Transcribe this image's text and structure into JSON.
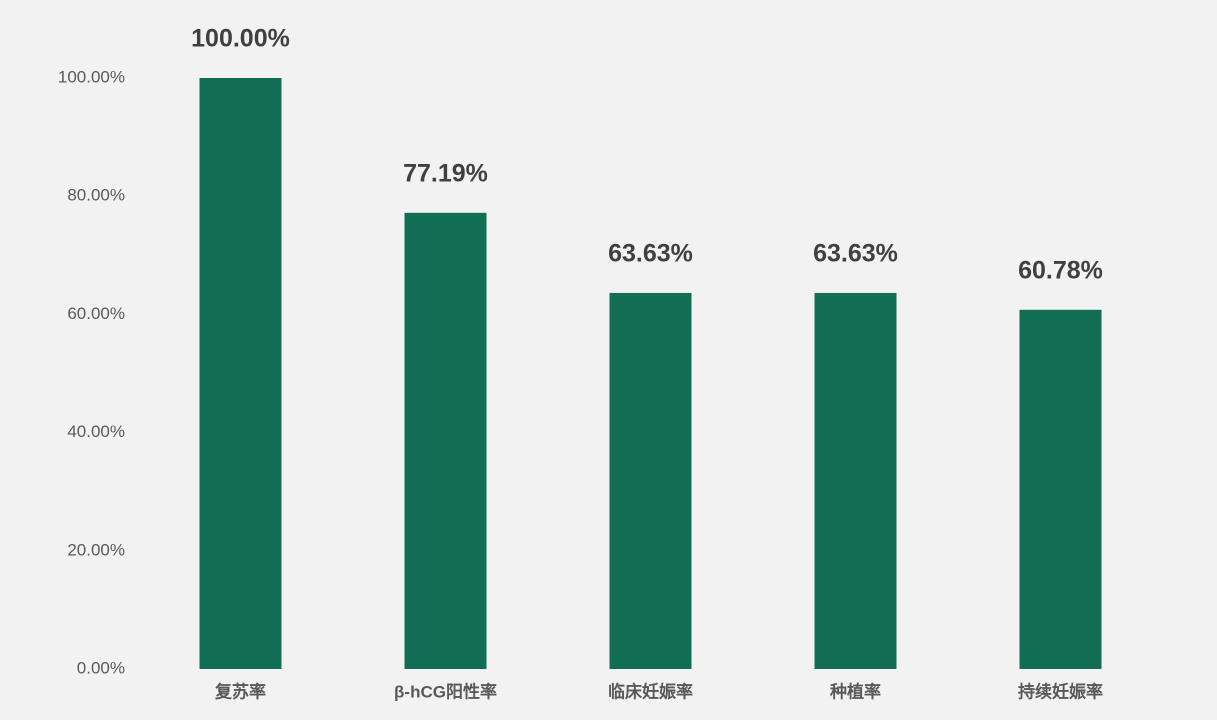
{
  "chart_data": {
    "type": "bar",
    "categories": [
      "复苏率",
      "β-hCG阳性率",
      "临床妊娠率",
      "种植率",
      "持续妊娠率"
    ],
    "values": [
      100,
      77.19,
      63.63,
      63.63,
      60.78
    ],
    "value_labels": [
      "100.00%",
      "77.19%",
      "63.63%",
      "63.63%",
      "60.78%"
    ],
    "color": "#116e54",
    "ylim": [
      0,
      100
    ],
    "yticks": [
      {
        "value": 0,
        "label": "0.00%"
      },
      {
        "value": 20,
        "label": "20.00%"
      },
      {
        "value": 40,
        "label": "40.00%"
      },
      {
        "value": 60,
        "label": "60.00%"
      },
      {
        "value": 80,
        "label": "80.00%"
      },
      {
        "value": 100,
        "label": "100.00%"
      }
    ],
    "grid": false
  }
}
